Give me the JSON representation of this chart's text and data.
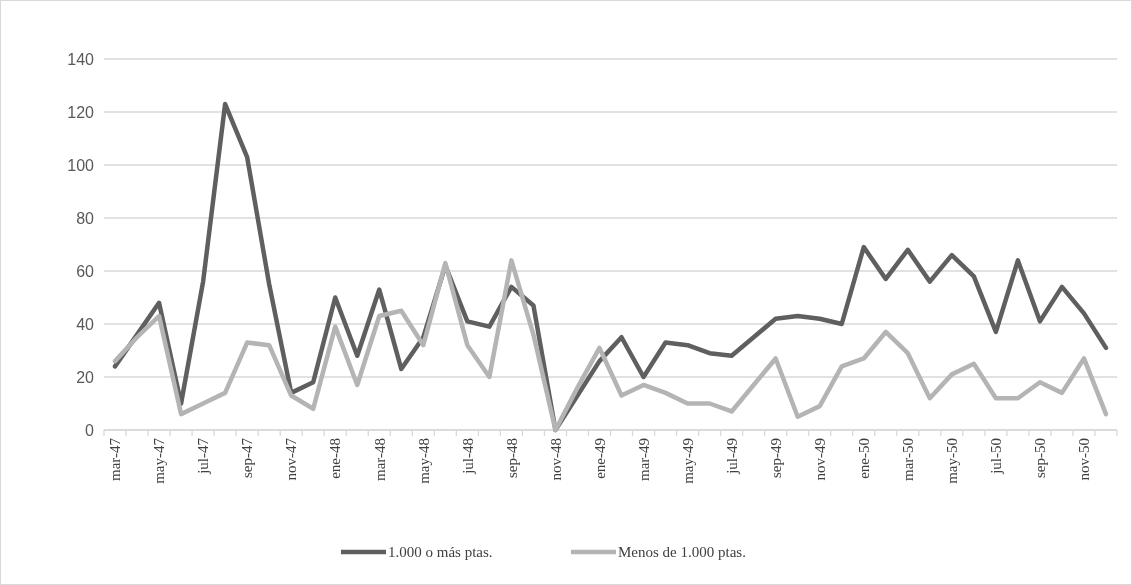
{
  "chart_data": {
    "type": "line",
    "categories": [
      "mar-47",
      null,
      "may-47",
      null,
      "jul-47",
      null,
      "sep-47",
      null,
      "nov-47",
      null,
      "ene-48",
      null,
      "mar-48",
      null,
      "may-48",
      null,
      "jul-48",
      null,
      "sep-48",
      null,
      "nov-48",
      null,
      "ene-49",
      null,
      "mar-49",
      null,
      "may-49",
      null,
      "jul-49",
      null,
      "sep-49",
      null,
      "nov-49",
      null,
      "ene-50",
      null,
      "mar-50",
      null,
      "may-50",
      null,
      "jul-50",
      null,
      "sep-50",
      null,
      "nov-50",
      null
    ],
    "series": [
      {
        "name": "1.000 o más ptas.",
        "color": "#5f5f5f",
        "values": [
          24,
          36,
          48,
          10,
          56,
          123,
          103,
          55,
          14,
          18,
          50,
          28,
          53,
          23,
          35,
          62,
          41,
          39,
          54,
          47,
          0,
          13,
          26,
          35,
          20,
          33,
          32,
          29,
          28,
          35,
          42,
          43,
          42,
          40,
          69,
          57,
          68,
          56,
          66,
          58,
          37,
          64,
          41,
          54,
          44,
          31
        ]
      },
      {
        "name": "Menos de 1.000 ptas.",
        "color": "#b4b4b4",
        "values": [
          26,
          35,
          43,
          6,
          10,
          14,
          33,
          32,
          13,
          8,
          39,
          17,
          43,
          45,
          32,
          63,
          32,
          20,
          64,
          36,
          0,
          16,
          31,
          13,
          17,
          14,
          10,
          10,
          7,
          17,
          27,
          5,
          9,
          24,
          27,
          37,
          29,
          12,
          21,
          25,
          12,
          12,
          18,
          14,
          27,
          6
        ]
      }
    ],
    "ylim": [
      0,
      140
    ],
    "yticks": [
      0,
      20,
      40,
      60,
      80,
      100,
      120,
      140
    ],
    "grid": "y",
    "legend": "bottom",
    "line_style": "solid"
  }
}
